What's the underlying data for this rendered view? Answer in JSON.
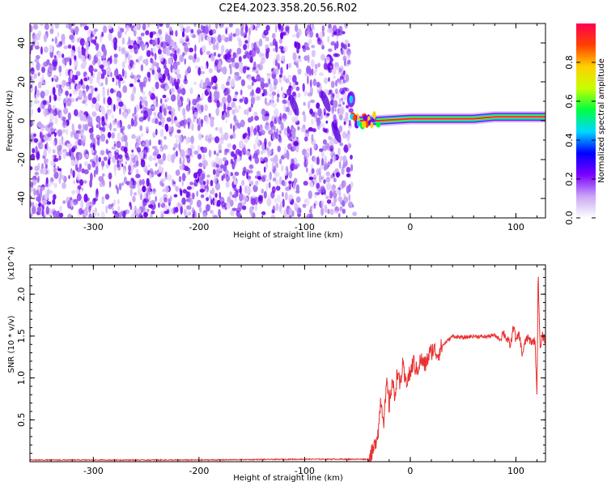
{
  "title": "C2E4.2023.358.20.56.R02",
  "chart_data": [
    {
      "type": "heatmap",
      "title": "C2E4.2023.358.20.56.R02",
      "xlabel": "Height of straight line (km)",
      "ylabel": "Frequency (Hz)",
      "xlim": [
        -360,
        128
      ],
      "ylim": [
        -50,
        50
      ],
      "xticks": [
        -300,
        -200,
        -100,
        0,
        100
      ],
      "yticks": [
        -40,
        -20,
        0,
        20,
        40
      ],
      "noise_region_x": [
        -360,
        -52
      ],
      "gap_x": -103,
      "signal_band": [
        {
          "x": -48,
          "freq": 0
        },
        {
          "x": -30,
          "freq": 0
        },
        {
          "x": 0,
          "freq": 1
        },
        {
          "x": 60,
          "freq": 1
        },
        {
          "x": 80,
          "freq": 2
        },
        {
          "x": 128,
          "freq": 2
        }
      ],
      "colorbar": {
        "label": "Normalized spectral amplitude",
        "range": [
          0,
          1
        ],
        "ticks": [
          0.0,
          0.2,
          0.4,
          0.6,
          0.8
        ],
        "tick_labels": [
          "0.0",
          "0.2",
          "0.4",
          "0.6",
          "0.8"
        ],
        "colors": [
          "#ffffff",
          "#c9a6f5",
          "#7b00ff",
          "#0000ff",
          "#00d8ff",
          "#00ff40",
          "#c8ff00",
          "#ffd000",
          "#ff4000",
          "#ff0050"
        ]
      }
    },
    {
      "type": "line",
      "xlabel": "Height of straight line (km)",
      "ylabel": "SNR (10 * v/v)",
      "y_multiplier": "(x10^4)",
      "xlim": [
        -360,
        128
      ],
      "ylim": [
        0,
        23500
      ],
      "xticks": [
        -300,
        -200,
        -100,
        0,
        100
      ],
      "yticks": [
        5000,
        10000,
        15000,
        20000
      ],
      "ytick_labels": [
        "0.5",
        "1.0",
        "1.5",
        "2.0"
      ],
      "color": "#e83030",
      "series": [
        {
          "name": "SNR",
          "x": [
            -360,
            -300,
            -200,
            -100,
            -40,
            -35,
            -30,
            -28,
            -25,
            -22,
            -20,
            -17,
            -15,
            -12,
            -10,
            -7,
            -5,
            -2,
            0,
            3,
            6,
            10,
            14,
            18,
            22,
            26,
            30,
            35,
            40,
            50,
            60,
            70,
            80,
            85,
            88,
            92,
            95,
            98,
            100,
            103,
            106,
            110,
            113,
            116,
            118,
            120,
            121,
            123,
            125,
            128
          ],
          "y": [
            200,
            200,
            200,
            300,
            300,
            1200,
            4000,
            7500,
            5000,
            9500,
            6500,
            10000,
            7500,
            11000,
            9000,
            11500,
            9500,
            10000,
            10500,
            12000,
            10800,
            12200,
            11500,
            12800,
            13500,
            12800,
            13800,
            14400,
            15000,
            14800,
            15000,
            14900,
            15100,
            14600,
            15500,
            14500,
            13800,
            16500,
            14300,
            15300,
            12800,
            14800,
            14500,
            14300,
            14600,
            8000,
            22800,
            13200,
            15000,
            14500
          ]
        }
      ]
    }
  ]
}
